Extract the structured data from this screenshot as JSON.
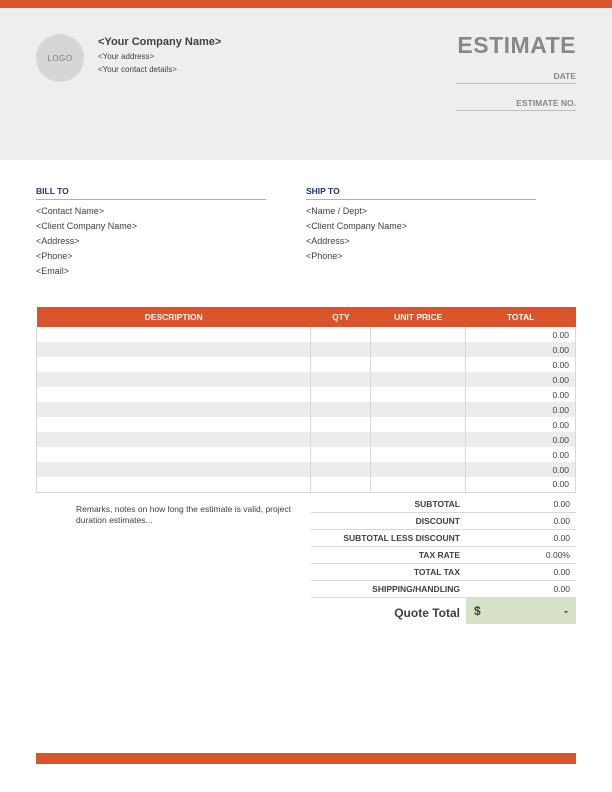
{
  "colors": {
    "accent": "#d8552c",
    "header_bg": "#eeeeee",
    "logo_bg": "#d6d6d6",
    "logo_text": "#7a7a7a",
    "title_text": "#888888",
    "section_label": "#1a3a6e",
    "stripe": "#ececec",
    "quote_bg": "#d7e1c5",
    "text": "#404040"
  },
  "header": {
    "logo_text": "LOGO",
    "company_name": "<Your Company Name>",
    "address": "<Your address>",
    "contact": "<Your contact details>",
    "title": "ESTIMATE",
    "date_label": "DATE",
    "estimate_no_label": "ESTIMATE NO."
  },
  "bill_to": {
    "label": "BILL TO",
    "lines": [
      "<Contact Name>",
      "<Client Company Name>",
      "<Address>",
      "<Phone>",
      "<Email>"
    ]
  },
  "ship_to": {
    "label": "SHIP TO",
    "lines": [
      "<Name / Dept>",
      "<Client Company Name>",
      "<Address>",
      "<Phone>"
    ]
  },
  "items": {
    "columns": {
      "description": "DESCRIPTION",
      "qty": "QTY",
      "unit_price": "UNIT PRICE",
      "total": "TOTAL"
    },
    "row_count": 11,
    "default_total": "0.00"
  },
  "remarks": "Remarks, notes on how long the estimate is valid, project duration estimates...",
  "summary": [
    {
      "label": "SUBTOTAL",
      "value": "0.00"
    },
    {
      "label": "DISCOUNT",
      "value": "0.00"
    },
    {
      "label": "SUBTOTAL LESS DISCOUNT",
      "value": "0.00"
    },
    {
      "label": "TAX RATE",
      "value": "0.00%"
    },
    {
      "label": "TOTAL TAX",
      "value": "0.00"
    },
    {
      "label": "SHIPPING/HANDLING",
      "value": "0.00"
    }
  ],
  "quote": {
    "label": "Quote Total",
    "symbol": "$",
    "value": "-"
  }
}
